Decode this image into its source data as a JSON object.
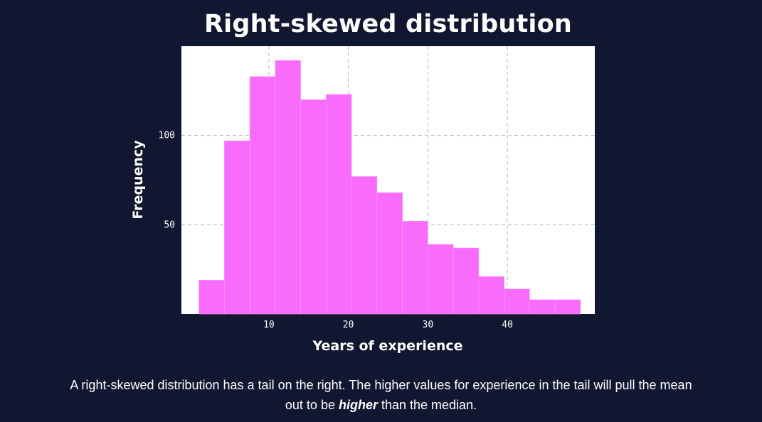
{
  "chart_data": {
    "type": "bar",
    "title": "Right-skewed distribution",
    "xlabel": "Years of experience",
    "ylabel": "Frequency",
    "bin_edges": [
      1.2,
      4.4,
      7.6,
      10.8,
      14.0,
      17.2,
      20.4,
      23.6,
      26.8,
      30.0,
      33.2,
      36.4,
      39.6,
      42.8,
      46.0,
      49.2
    ],
    "values": [
      19,
      97,
      133,
      142,
      120,
      123,
      77,
      68,
      52,
      39,
      37,
      21,
      14,
      8,
      8
    ],
    "xlim": [
      -1,
      51
    ],
    "ylim": [
      0,
      150
    ],
    "xticks": [
      10,
      20,
      30,
      40
    ],
    "yticks": [
      50,
      100
    ],
    "grid": true,
    "colors": {
      "bar": "#f96cfb",
      "bar_edge": "#f5a0f7",
      "plot_bg": "#ffffff",
      "grid": "#b8b8b8",
      "page_bg": "#111631"
    }
  },
  "caption": {
    "before": "A right-skewed distribution has a tail on the right. The higher values for experience in the tail will pull the mean out to be ",
    "emphasis": "higher",
    "after": " than the median."
  }
}
